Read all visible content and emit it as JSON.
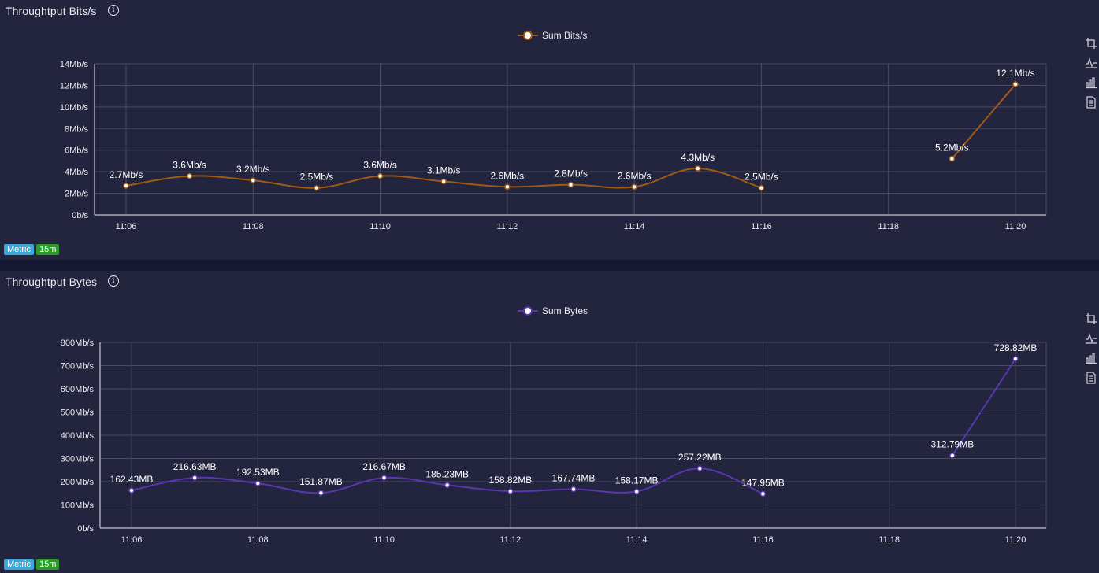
{
  "panels": [
    {
      "title": "Throughtput Bits/s",
      "info_icon": "info-icon",
      "tags": {
        "metric": "Metric",
        "range": "15m"
      },
      "tools": [
        "crop-icon",
        "line-chart-icon",
        "bar-chart-icon",
        "document-icon"
      ]
    },
    {
      "title": "Throughtput Bytes",
      "info_icon": "info-icon",
      "tags": {
        "metric": "Metric",
        "range": "15m"
      },
      "tools": [
        "crop-icon",
        "line-chart-icon",
        "bar-chart-icon",
        "document-icon"
      ]
    }
  ],
  "chart_data": [
    {
      "type": "line",
      "title": "Throughtput Bits/s",
      "legend": "top-center",
      "grid": true,
      "color": "#a05a14",
      "x_ticks": [
        "11:06",
        "11:08",
        "11:10",
        "11:12",
        "11:14",
        "11:16",
        "11:18",
        "11:20"
      ],
      "y_ticks": [
        "0b/s",
        "2Mb/s",
        "4Mb/s",
        "6Mb/s",
        "8Mb/s",
        "10Mb/s",
        "12Mb/s",
        "14Mb/s"
      ],
      "ylim": [
        0,
        14
      ],
      "series": [
        {
          "name": "Sum Bits/s",
          "points": [
            {
              "x": "11:06",
              "y": 2.7,
              "label": "2.7Mb/s"
            },
            {
              "x": "11:07",
              "y": 3.6,
              "label": "3.6Mb/s"
            },
            {
              "x": "11:08",
              "y": 3.2,
              "label": "3.2Mb/s"
            },
            {
              "x": "11:09",
              "y": 2.5,
              "label": "2.5Mb/s"
            },
            {
              "x": "11:10",
              "y": 3.6,
              "label": "3.6Mb/s"
            },
            {
              "x": "11:11",
              "y": 3.1,
              "label": "3.1Mb/s"
            },
            {
              "x": "11:12",
              "y": 2.6,
              "label": "2.6Mb/s"
            },
            {
              "x": "11:13",
              "y": 2.8,
              "label": "2.8Mb/s"
            },
            {
              "x": "11:14",
              "y": 2.6,
              "label": "2.6Mb/s"
            },
            {
              "x": "11:15",
              "y": 4.3,
              "label": "4.3Mb/s"
            },
            {
              "x": "11:16",
              "y": 2.5,
              "label": "2.5Mb/s"
            },
            {
              "x": "11:19",
              "y": 5.2,
              "label": "5.2Mb/s"
            },
            {
              "x": "11:20",
              "y": 12.1,
              "label": "12.1Mb/s"
            }
          ]
        }
      ]
    },
    {
      "type": "line",
      "title": "Throughtput Bytes",
      "legend": "top-center",
      "grid": true,
      "color": "#5a35b0",
      "x_ticks": [
        "11:06",
        "11:08",
        "11:10",
        "11:12",
        "11:14",
        "11:16",
        "11:18",
        "11:20"
      ],
      "y_ticks": [
        "0b/s",
        "100Mb/s",
        "200Mb/s",
        "300Mb/s",
        "400Mb/s",
        "500Mb/s",
        "600Mb/s",
        "700Mb/s",
        "800Mb/s"
      ],
      "ylim": [
        0,
        800
      ],
      "series": [
        {
          "name": "Sum Bytes",
          "points": [
            {
              "x": "11:06",
              "y": 162.43,
              "label": "162.43MB"
            },
            {
              "x": "11:07",
              "y": 216.63,
              "label": "216.63MB"
            },
            {
              "x": "11:08",
              "y": 192.53,
              "label": "192.53MB"
            },
            {
              "x": "11:09",
              "y": 151.87,
              "label": "151.87MB"
            },
            {
              "x": "11:10",
              "y": 216.67,
              "label": "216.67MB"
            },
            {
              "x": "11:11",
              "y": 185.23,
              "label": "185.23MB"
            },
            {
              "x": "11:12",
              "y": 158.82,
              "label": "158.82MB"
            },
            {
              "x": "11:13",
              "y": 167.74,
              "label": "167.74MB"
            },
            {
              "x": "11:14",
              "y": 158.17,
              "label": "158.17MB"
            },
            {
              "x": "11:15",
              "y": 257.22,
              "label": "257.22MB"
            },
            {
              "x": "11:16",
              "y": 147.95,
              "label": "147.95MB"
            },
            {
              "x": "11:19",
              "y": 312.79,
              "label": "312.79MB"
            },
            {
              "x": "11:20",
              "y": 728.82,
              "label": "728.82MB"
            }
          ]
        }
      ]
    }
  ]
}
